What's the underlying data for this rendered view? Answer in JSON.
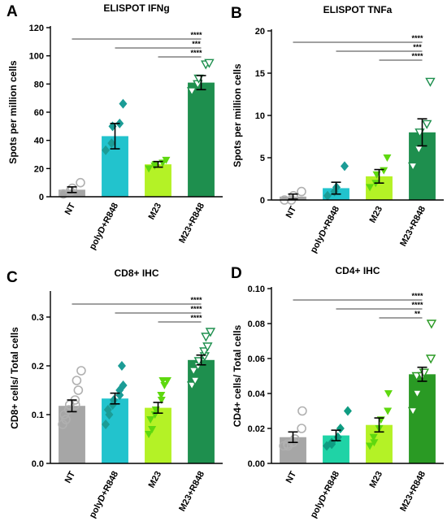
{
  "chart_data": [
    {
      "panel": "A",
      "type": "bar",
      "title": "ELISPOT IFNg",
      "ylabel": "Spots per million cells",
      "ylim": [
        0,
        120
      ],
      "yticks": [
        0,
        20,
        40,
        60,
        80,
        100,
        120
      ],
      "categories": [
        "NT",
        "polyD+R848",
        "M23",
        "M23+R848"
      ],
      "values": [
        5,
        43,
        23,
        81
      ],
      "errors": [
        2,
        9,
        2,
        5
      ],
      "bar_colors": [
        "#a6a6a6",
        "#22c3cd",
        "#b4f226",
        "#1e8f4e"
      ],
      "points": [
        [
          2,
          4,
          6,
          10
        ],
        [
          33,
          38,
          50,
          52,
          66
        ],
        [
          20,
          22,
          23,
          24,
          26
        ],
        [
          75,
          80,
          84,
          94,
          95
        ]
      ],
      "markers": [
        "circle-open",
        "diamond",
        "triangle-down",
        "triangle-down-open"
      ],
      "marker_colors": [
        "#b0b0b0",
        "#1b9c96",
        "#5ed80f",
        "#1e8f4e"
      ],
      "significance": [
        {
          "from": 0,
          "to": 3,
          "label": "****"
        },
        {
          "from": 1,
          "to": 3,
          "label": "***"
        },
        {
          "from": 2,
          "to": 3,
          "label": "****"
        }
      ]
    },
    {
      "panel": "B",
      "type": "bar",
      "title": "ELISPOT TNFa",
      "ylabel": "Spots per million cells",
      "ylim": [
        0,
        20
      ],
      "yticks": [
        0,
        5,
        10,
        15,
        20
      ],
      "categories": [
        "NT",
        "polyD+R848",
        "M23",
        "M23+R848"
      ],
      "values": [
        0.4,
        1.4,
        2.8,
        8
      ],
      "errors": [
        0.3,
        0.7,
        0.8,
        1.6
      ],
      "bar_colors": [
        "#a6a6a6",
        "#22c3cd",
        "#b4f226",
        "#1e8f4e"
      ],
      "points": [
        [
          0,
          0,
          0.5,
          1
        ],
        [
          0.5,
          1,
          1.5,
          4
        ],
        [
          1.5,
          2,
          3,
          3.5,
          5
        ],
        [
          4,
          6,
          8,
          9,
          14
        ]
      ],
      "markers": [
        "circle-open",
        "diamond",
        "triangle-down",
        "triangle-down-open"
      ],
      "marker_colors": [
        "#b0b0b0",
        "#1b9c96",
        "#5ed80f",
        "#1e8f4e"
      ],
      "significance": [
        {
          "from": 0,
          "to": 3,
          "label": "****"
        },
        {
          "from": 1,
          "to": 3,
          "label": "***"
        },
        {
          "from": 2,
          "to": 3,
          "label": "****"
        }
      ]
    },
    {
      "panel": "C",
      "type": "bar",
      "title": "CD8+ IHC",
      "ylabel": "CD8+ cells/ Total cells",
      "ylim": [
        0,
        0.35
      ],
      "yticks": [
        0.0,
        0.1,
        0.2,
        0.3
      ],
      "ytick_labels": [
        "0.0",
        "0.1",
        "0.2",
        "0.3"
      ],
      "categories": [
        "NT",
        "polyD+R848",
        "M23",
        "M23+R848"
      ],
      "values": [
        0.118,
        0.133,
        0.114,
        0.212
      ],
      "errors": [
        0.012,
        0.011,
        0.011,
        0.01
      ],
      "bar_colors": [
        "#a6a6a6",
        "#22c3cd",
        "#b4f226",
        "#1e8f4e"
      ],
      "points": [
        [
          0.08,
          0.09,
          0.1,
          0.11,
          0.12,
          0.12,
          0.13,
          0.15,
          0.17,
          0.19
        ],
        [
          0.08,
          0.1,
          0.11,
          0.12,
          0.13,
          0.14,
          0.15,
          0.16,
          0.2
        ],
        [
          0.06,
          0.07,
          0.09,
          0.1,
          0.11,
          0.13,
          0.14,
          0.16,
          0.17,
          0.17
        ],
        [
          0.16,
          0.17,
          0.19,
          0.2,
          0.21,
          0.22,
          0.23,
          0.24,
          0.26,
          0.27
        ]
      ],
      "markers": [
        "circle-open",
        "diamond",
        "triangle-down",
        "triangle-down-open"
      ],
      "marker_colors": [
        "#b0b0b0",
        "#1b9c96",
        "#5ed80f",
        "#1e8f4e"
      ],
      "significance": [
        {
          "from": 0,
          "to": 3,
          "label": "****"
        },
        {
          "from": 1,
          "to": 3,
          "label": "****"
        },
        {
          "from": 2,
          "to": 3,
          "label": "****"
        }
      ]
    },
    {
      "panel": "D",
      "type": "bar",
      "title": "CD4+ IHC",
      "ylabel": "CD4+ cells/ Total cells",
      "ylim": [
        0,
        0.1
      ],
      "yticks": [
        0.0,
        0.02,
        0.04,
        0.06,
        0.08,
        0.1
      ],
      "ytick_labels": [
        "0.00",
        "0.02",
        "0.04",
        "0.06",
        "0.08",
        "0.10"
      ],
      "categories": [
        "NT",
        "polyD+R848",
        "M23",
        "M23+R848"
      ],
      "values": [
        0.015,
        0.016,
        0.022,
        0.051
      ],
      "errors": [
        0.003,
        0.003,
        0.004,
        0.004
      ],
      "bar_colors": [
        "#a6a6a6",
        "#1fd3a6",
        "#b4f226",
        "#2a9a24"
      ],
      "points": [
        [
          0.01,
          0.01,
          0.011,
          0.012,
          0.014,
          0.02,
          0.03
        ],
        [
          0.01,
          0.011,
          0.012,
          0.015,
          0.02,
          0.03
        ],
        [
          0.01,
          0.012,
          0.015,
          0.02,
          0.025,
          0.03,
          0.04
        ],
        [
          0.03,
          0.04,
          0.05,
          0.05,
          0.052,
          0.06,
          0.08
        ]
      ],
      "markers": [
        "circle-open",
        "diamond",
        "triangle-down",
        "triangle-down-open"
      ],
      "marker_colors": [
        "#b0b0b0",
        "#0f9c82",
        "#5ed80f",
        "#2a9a24"
      ],
      "significance": [
        {
          "from": 0,
          "to": 3,
          "label": "****"
        },
        {
          "from": 1,
          "to": 3,
          "label": "****"
        },
        {
          "from": 2,
          "to": 3,
          "label": "**"
        }
      ]
    }
  ]
}
